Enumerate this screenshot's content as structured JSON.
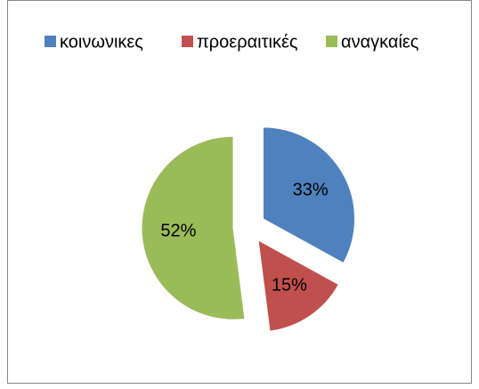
{
  "chart_data": {
    "type": "pie",
    "categories": [
      "κοινωνικες",
      "προεραιτικές",
      "αναγκαίες"
    ],
    "values": [
      33,
      15,
      52
    ],
    "value_labels": [
      "33%",
      "15%",
      "52%"
    ],
    "colors": [
      "#4f81bd",
      "#c0504d",
      "#9bbb59"
    ],
    "legend": "top"
  }
}
